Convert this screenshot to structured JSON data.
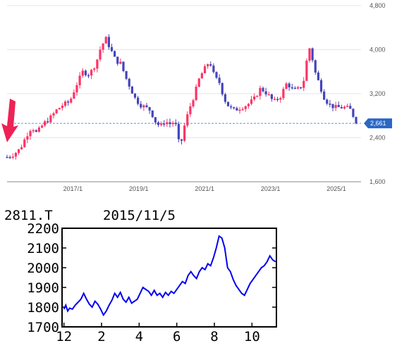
{
  "chart_data": [
    {
      "type": "candlestick",
      "title": "",
      "xlabel": "",
      "ylabel": "",
      "ylim": [
        1600,
        4800
      ],
      "y_ticks": [
        1600,
        2400,
        3200,
        4000,
        4800
      ],
      "y_tick_labels": [
        "1,600",
        "2,400",
        "3,200",
        "4,000",
        "4,800"
      ],
      "x_tick_labels": [
        "2017/1",
        "2019/1",
        "2021/1",
        "2023/1",
        "2025/1"
      ],
      "x_tick_positions": [
        2017.0,
        2019.0,
        2021.0,
        2023.0,
        2025.0
      ],
      "x_range": [
        2015.0,
        2025.75
      ],
      "current_price": 2661,
      "current_price_label": "2,661",
      "up_color": "#ff3366",
      "down_color": "#4444bb",
      "reference_line_color": "#5599dd",
      "arrow_color": "#ee2255",
      "grid": true,
      "price_path": [
        [
          2015.0,
          2050
        ],
        [
          2015.2,
          2100
        ],
        [
          2015.4,
          2200
        ],
        [
          2015.6,
          2450
        ],
        [
          2015.75,
          2600
        ],
        [
          2015.9,
          2480
        ],
        [
          2016.1,
          2650
        ],
        [
          2016.3,
          2750
        ],
        [
          2016.5,
          2900
        ],
        [
          2016.7,
          3000
        ],
        [
          2016.9,
          3050
        ],
        [
          2017.1,
          3350
        ],
        [
          2017.3,
          3600
        ],
        [
          2017.5,
          3550
        ],
        [
          2017.7,
          3750
        ],
        [
          2017.85,
          4050
        ],
        [
          2018.0,
          4200
        ],
        [
          2018.15,
          4000
        ],
        [
          2018.3,
          3800
        ],
        [
          2018.45,
          3750
        ],
        [
          2018.6,
          3500
        ],
        [
          2018.75,
          3300
        ],
        [
          2018.9,
          3100
        ],
        [
          2019.05,
          3000
        ],
        [
          2019.2,
          2950
        ],
        [
          2019.35,
          2900
        ],
        [
          2019.5,
          2700
        ],
        [
          2019.65,
          2600
        ],
        [
          2019.8,
          2700
        ],
        [
          2019.95,
          2650
        ],
        [
          2020.1,
          2700
        ],
        [
          2020.25,
          2200
        ],
        [
          2020.4,
          2650
        ],
        [
          2020.55,
          2950
        ],
        [
          2020.7,
          3200
        ],
        [
          2020.85,
          3500
        ],
        [
          2021.0,
          3650
        ],
        [
          2021.15,
          3800
        ],
        [
          2021.3,
          3500
        ],
        [
          2021.45,
          3400
        ],
        [
          2021.6,
          3100
        ],
        [
          2021.75,
          2950
        ],
        [
          2021.9,
          2900
        ],
        [
          2022.1,
          2950
        ],
        [
          2022.3,
          3000
        ],
        [
          2022.5,
          3100
        ],
        [
          2022.7,
          3300
        ],
        [
          2022.9,
          3200
        ],
        [
          2023.1,
          3050
        ],
        [
          2023.3,
          3150
        ],
        [
          2023.5,
          3400
        ],
        [
          2023.7,
          3250
        ],
        [
          2023.9,
          3300
        ],
        [
          2024.05,
          3500
        ],
        [
          2024.15,
          4100
        ],
        [
          2024.25,
          3900
        ],
        [
          2024.35,
          3600
        ],
        [
          2024.5,
          3350
        ],
        [
          2024.65,
          3100
        ],
        [
          2024.8,
          3000
        ],
        [
          2024.95,
          2950
        ],
        [
          2025.1,
          2950
        ],
        [
          2025.3,
          2950
        ],
        [
          2025.45,
          2900
        ],
        [
          2025.6,
          2661
        ]
      ]
    },
    {
      "type": "line",
      "title": "2811.T",
      "subtitle": "2015/11/5",
      "xlabel": "",
      "ylabel": "",
      "ylim": [
        1700,
        2200
      ],
      "y_ticks": [
        1700,
        1800,
        1900,
        2000,
        2100,
        2200
      ],
      "y_tick_labels": [
        "1700",
        "1800",
        "1900",
        "2000",
        "2100",
        "2200"
      ],
      "x_tick_labels": [
        "12",
        "2",
        "4",
        "6",
        "8",
        "10"
      ],
      "x_tick_positions": [
        0.0,
        2.0,
        4.0,
        6.0,
        8.0,
        10.0
      ],
      "x_range": [
        -0.1,
        11.3
      ],
      "line_color": "#0000ee",
      "grid": false,
      "series": [
        {
          "name": "",
          "x": [
            0.0,
            0.1,
            0.2,
            0.3,
            0.45,
            0.6,
            0.75,
            0.9,
            1.05,
            1.2,
            1.35,
            1.5,
            1.65,
            1.8,
            1.95,
            2.1,
            2.25,
            2.4,
            2.55,
            2.7,
            2.85,
            3.0,
            3.15,
            3.3,
            3.45,
            3.6,
            3.75,
            3.9,
            4.05,
            4.2,
            4.35,
            4.5,
            4.65,
            4.8,
            4.95,
            5.1,
            5.25,
            5.4,
            5.55,
            5.7,
            5.85,
            6.0,
            6.15,
            6.3,
            6.45,
            6.6,
            6.75,
            6.9,
            7.05,
            7.2,
            7.35,
            7.5,
            7.65,
            7.8,
            7.95,
            8.1,
            8.25,
            8.4,
            8.55,
            8.7,
            8.85,
            9.0,
            9.15,
            9.3,
            9.45,
            9.6,
            9.75,
            9.9,
            10.05,
            10.2,
            10.35,
            10.5,
            10.65,
            10.8,
            10.95,
            11.1,
            11.25
          ],
          "y": [
            1790,
            1810,
            1780,
            1795,
            1790,
            1810,
            1825,
            1840,
            1870,
            1840,
            1815,
            1800,
            1830,
            1815,
            1790,
            1760,
            1780,
            1810,
            1835,
            1870,
            1850,
            1875,
            1840,
            1825,
            1850,
            1820,
            1830,
            1840,
            1870,
            1900,
            1890,
            1880,
            1860,
            1885,
            1860,
            1870,
            1850,
            1875,
            1860,
            1880,
            1870,
            1890,
            1910,
            1930,
            1920,
            1960,
            1980,
            1960,
            1945,
            1980,
            2000,
            1990,
            2020,
            2010,
            2050,
            2100,
            2160,
            2150,
            2100,
            2000,
            1980,
            1940,
            1910,
            1890,
            1870,
            1860,
            1890,
            1920,
            1940,
            1960,
            1980,
            2000,
            2010,
            2030,
            2060,
            2040,
            2030
          ]
        }
      ]
    }
  ]
}
